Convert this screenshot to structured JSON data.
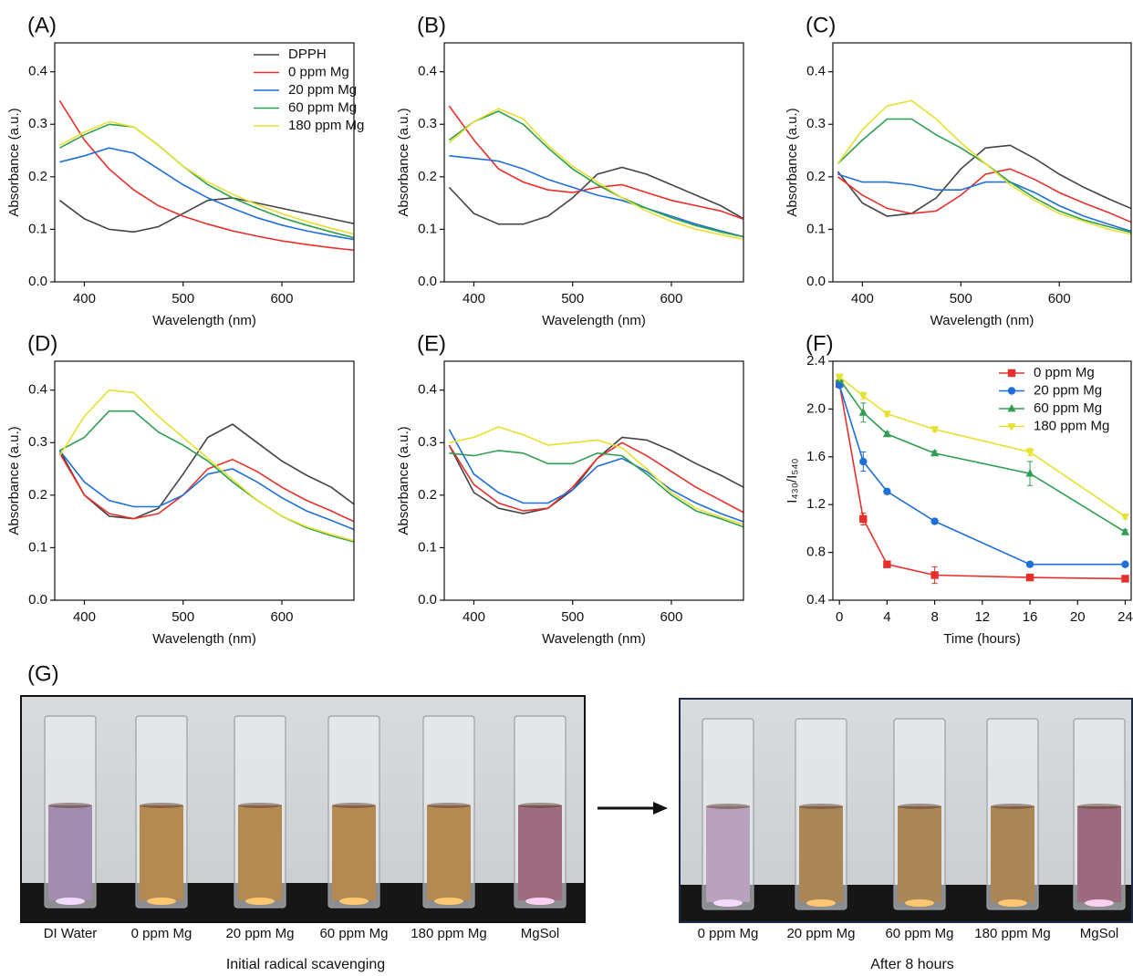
{
  "chart_data": [
    {
      "type": "line",
      "panel_label": "(A)",
      "xlabel": "Wavelength (nm)",
      "ylabel": "Absorbance (a.u.)",
      "x": [
        375,
        400,
        425,
        450,
        475,
        500,
        525,
        550,
        575,
        600,
        625,
        650,
        675
      ],
      "xlim": [
        370,
        673
      ],
      "xticks": [
        400,
        500,
        600
      ],
      "ylim": [
        0,
        0.455
      ],
      "yticks": [
        {
          "value": 0,
          "label": "0.0"
        },
        0.1,
        0.2,
        0.3,
        0.4
      ],
      "legend": "upper right",
      "series": [
        {
          "name": "DPPH",
          "color": "#444444",
          "values": [
            0.155,
            0.12,
            0.1,
            0.095,
            0.105,
            0.13,
            0.155,
            0.16,
            0.15,
            0.14,
            0.13,
            0.12,
            0.11
          ]
        },
        {
          "name": "0 ppm Mg",
          "color": "#e8302a",
          "values": [
            0.345,
            0.27,
            0.215,
            0.175,
            0.145,
            0.125,
            0.11,
            0.097,
            0.087,
            0.078,
            0.071,
            0.065,
            0.06
          ]
        },
        {
          "name": "20 ppm Mg",
          "color": "#1f6fd8",
          "values": [
            0.228,
            0.24,
            0.255,
            0.245,
            0.215,
            0.185,
            0.16,
            0.14,
            0.122,
            0.108,
            0.097,
            0.088,
            0.08
          ]
        },
        {
          "name": "60 ppm Mg",
          "color": "#2e9e50",
          "values": [
            0.255,
            0.28,
            0.3,
            0.295,
            0.26,
            0.22,
            0.185,
            0.16,
            0.14,
            0.122,
            0.108,
            0.095,
            0.083
          ]
        },
        {
          "name": "180 ppm Mg",
          "color": "#e6e030",
          "values": [
            0.26,
            0.285,
            0.305,
            0.295,
            0.26,
            0.22,
            0.19,
            0.167,
            0.147,
            0.13,
            0.115,
            0.102,
            0.09
          ]
        }
      ]
    },
    {
      "type": "line",
      "panel_label": "(B)",
      "xlabel": "Wavelength (nm)",
      "ylabel": "Absorbance (a.u.)",
      "x": [
        375,
        400,
        425,
        450,
        475,
        500,
        525,
        550,
        575,
        600,
        625,
        650,
        675
      ],
      "xlim": [
        370,
        673
      ],
      "xticks": [
        400,
        500,
        600
      ],
      "ylim": [
        0,
        0.455
      ],
      "yticks": [
        {
          "value": 0,
          "label": "0.0"
        },
        0.1,
        0.2,
        0.3,
        0.4
      ],
      "series": [
        {
          "color": "#444444",
          "values": [
            0.18,
            0.13,
            0.11,
            0.11,
            0.125,
            0.16,
            0.205,
            0.218,
            0.205,
            0.185,
            0.165,
            0.145,
            0.118
          ]
        },
        {
          "color": "#e8302a",
          "values": [
            0.335,
            0.27,
            0.215,
            0.19,
            0.175,
            0.17,
            0.18,
            0.185,
            0.17,
            0.155,
            0.145,
            0.135,
            0.118
          ]
        },
        {
          "color": "#1f6fd8",
          "values": [
            0.24,
            0.235,
            0.23,
            0.215,
            0.195,
            0.18,
            0.165,
            0.155,
            0.14,
            0.125,
            0.11,
            0.097,
            0.085
          ]
        },
        {
          "color": "#2e9e50",
          "values": [
            0.27,
            0.305,
            0.325,
            0.3,
            0.255,
            0.215,
            0.185,
            0.16,
            0.14,
            0.122,
            0.107,
            0.095,
            0.085
          ]
        },
        {
          "color": "#e6e030",
          "values": [
            0.265,
            0.305,
            0.33,
            0.31,
            0.26,
            0.22,
            0.19,
            0.16,
            0.135,
            0.115,
            0.1,
            0.09,
            0.08
          ]
        }
      ]
    },
    {
      "type": "line",
      "panel_label": "(C)",
      "xlabel": "Wavelength (nm)",
      "ylabel": "Absorbance (a.u.)",
      "x": [
        375,
        400,
        425,
        450,
        475,
        500,
        525,
        550,
        575,
        600,
        625,
        650,
        675
      ],
      "xlim": [
        370,
        673
      ],
      "xticks": [
        400,
        500,
        600
      ],
      "ylim": [
        0,
        0.455
      ],
      "yticks": [
        {
          "value": 0,
          "label": "0.0"
        },
        0.1,
        0.2,
        0.3,
        0.4
      ],
      "series": [
        {
          "color": "#444444",
          "values": [
            0.21,
            0.15,
            0.125,
            0.13,
            0.16,
            0.215,
            0.255,
            0.26,
            0.235,
            0.205,
            0.18,
            0.158,
            0.138
          ]
        },
        {
          "color": "#e8302a",
          "values": [
            0.2,
            0.165,
            0.14,
            0.13,
            0.135,
            0.165,
            0.205,
            0.215,
            0.195,
            0.17,
            0.15,
            0.132,
            0.112
          ]
        },
        {
          "color": "#1f6fd8",
          "values": [
            0.205,
            0.19,
            0.19,
            0.185,
            0.175,
            0.175,
            0.19,
            0.19,
            0.17,
            0.145,
            0.125,
            0.11,
            0.095
          ]
        },
        {
          "color": "#2e9e50",
          "values": [
            0.225,
            0.27,
            0.31,
            0.31,
            0.28,
            0.255,
            0.225,
            0.19,
            0.16,
            0.135,
            0.118,
            0.105,
            0.093
          ]
        },
        {
          "color": "#e6e030",
          "values": [
            0.225,
            0.29,
            0.335,
            0.345,
            0.31,
            0.265,
            0.225,
            0.185,
            0.155,
            0.13,
            0.115,
            0.1,
            0.09
          ]
        }
      ]
    },
    {
      "type": "line",
      "panel_label": "(D)",
      "xlabel": "Wavelength (nm)",
      "ylabel": "Absorbance (a.u.)",
      "x": [
        375,
        400,
        425,
        450,
        475,
        500,
        525,
        550,
        575,
        600,
        625,
        650,
        675
      ],
      "xlim": [
        370,
        673
      ],
      "xticks": [
        400,
        500,
        600
      ],
      "ylim": [
        0,
        0.455
      ],
      "yticks": [
        {
          "value": 0,
          "label": "0.0"
        },
        0.1,
        0.2,
        0.3,
        0.4
      ],
      "series": [
        {
          "color": "#444444",
          "values": [
            0.285,
            0.2,
            0.16,
            0.155,
            0.175,
            0.24,
            0.31,
            0.335,
            0.3,
            0.265,
            0.238,
            0.215,
            0.18
          ]
        },
        {
          "color": "#e8302a",
          "values": [
            0.28,
            0.2,
            0.165,
            0.155,
            0.165,
            0.2,
            0.25,
            0.268,
            0.245,
            0.215,
            0.19,
            0.17,
            0.148
          ]
        },
        {
          "color": "#1f6fd8",
          "values": [
            0.285,
            0.225,
            0.19,
            0.178,
            0.178,
            0.2,
            0.24,
            0.25,
            0.225,
            0.195,
            0.17,
            0.152,
            0.133
          ]
        },
        {
          "color": "#2e9e50",
          "values": [
            0.285,
            0.31,
            0.36,
            0.36,
            0.32,
            0.295,
            0.265,
            0.225,
            0.19,
            0.16,
            0.138,
            0.123,
            0.11
          ]
        },
        {
          "color": "#e6e030",
          "values": [
            0.275,
            0.35,
            0.4,
            0.395,
            0.35,
            0.31,
            0.27,
            0.23,
            0.19,
            0.16,
            0.14,
            0.125,
            0.112
          ]
        }
      ]
    },
    {
      "type": "line",
      "panel_label": "(E)",
      "xlabel": "Wavelength (nm)",
      "ylabel": "Absorbance (a.u.)",
      "x": [
        375,
        400,
        425,
        450,
        475,
        500,
        525,
        550,
        575,
        600,
        625,
        650,
        675
      ],
      "xlim": [
        370,
        673
      ],
      "xticks": [
        400,
        500,
        600
      ],
      "ylim": [
        0,
        0.455
      ],
      "yticks": [
        {
          "value": 0,
          "label": "0.0"
        },
        0.1,
        0.2,
        0.3,
        0.4
      ],
      "series": [
        {
          "color": "#444444",
          "values": [
            0.295,
            0.205,
            0.175,
            0.165,
            0.175,
            0.21,
            0.27,
            0.31,
            0.305,
            0.285,
            0.26,
            0.238,
            0.213
          ]
        },
        {
          "color": "#e8302a",
          "values": [
            0.295,
            0.22,
            0.185,
            0.17,
            0.175,
            0.215,
            0.27,
            0.3,
            0.275,
            0.245,
            0.215,
            0.19,
            0.165
          ]
        },
        {
          "color": "#1f6fd8",
          "values": [
            0.325,
            0.24,
            0.205,
            0.185,
            0.185,
            0.21,
            0.255,
            0.27,
            0.245,
            0.21,
            0.185,
            0.165,
            0.148
          ]
        },
        {
          "color": "#2e9e50",
          "values": [
            0.28,
            0.275,
            0.285,
            0.28,
            0.26,
            0.26,
            0.28,
            0.275,
            0.24,
            0.2,
            0.17,
            0.155,
            0.138
          ]
        },
        {
          "color": "#e6e030",
          "values": [
            0.3,
            0.31,
            0.33,
            0.315,
            0.295,
            0.3,
            0.305,
            0.29,
            0.25,
            0.205,
            0.175,
            0.158,
            0.143
          ]
        }
      ]
    },
    {
      "type": "line",
      "panel_label": "(F)",
      "xlabel": "Time (hours)",
      "ylabel": "I₄₃₀/I₅₄₀",
      "x": [
        0,
        2,
        4,
        8,
        16,
        24
      ],
      "xlim": [
        -0.55,
        24.5
      ],
      "xticks": [
        0,
        4,
        8,
        12,
        16,
        20,
        24
      ],
      "ylim": [
        0.4,
        2.4
      ],
      "yticks": [
        0.4,
        0.8,
        1.2,
        1.6,
        {
          "value": 2,
          "label": "2.0"
        },
        2.4
      ],
      "legend": "upper right",
      "series": [
        {
          "name": "0 ppm Mg",
          "color": "#e8302a",
          "marker": "square",
          "values": [
            2.21,
            1.08,
            0.7,
            0.61,
            0.59,
            0.58
          ],
          "errors": [
            0.02,
            0.05,
            0.02,
            0.07,
            0.02,
            0.02
          ]
        },
        {
          "name": "20 ppm Mg",
          "color": "#1f6fd8",
          "marker": "circle",
          "values": [
            2.2,
            1.56,
            1.31,
            1.06,
            0.7,
            0.7
          ],
          "errors": [
            0.02,
            0.08,
            0.02,
            0.02,
            0.01,
            0.01
          ]
        },
        {
          "name": "60 ppm Mg",
          "color": "#2e9e50",
          "marker": "triangle-up",
          "values": [
            2.25,
            1.97,
            1.79,
            1.63,
            1.46,
            0.97
          ],
          "errors": [
            0.02,
            0.08,
            0.02,
            0.02,
            0.1,
            0.02
          ]
        },
        {
          "name": "180 ppm Mg",
          "color": "#e6e030",
          "marker": "triangle-down",
          "values": [
            2.27,
            2.11,
            1.96,
            1.83,
            1.64,
            1.1
          ],
          "errors": [
            0.02,
            0.03,
            0.02,
            0.02,
            0.03,
            0.02
          ]
        }
      ]
    }
  ],
  "photos": {
    "panel_label": "(G)",
    "initial": {
      "caption": "Initial radical scavenging",
      "samples": [
        "DI Water",
        "0 ppm Mg",
        "20 ppm Mg",
        "60 ppm Mg",
        "180 ppm Mg",
        "MgSol"
      ]
    },
    "after": {
      "caption": "After 8 hours",
      "samples": [
        "0 ppm Mg",
        "20 ppm Mg",
        "60 ppm Mg",
        "180 ppm Mg",
        "MgSol"
      ]
    }
  }
}
